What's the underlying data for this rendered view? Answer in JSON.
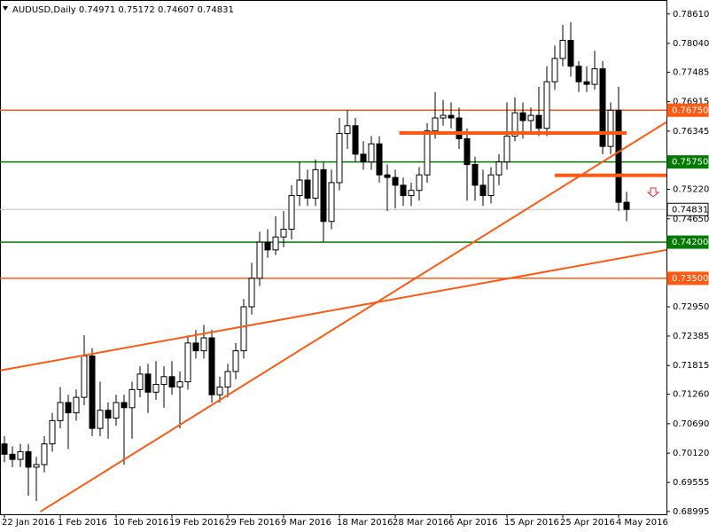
{
  "chart_data": {
    "type": "candlestick",
    "title": "AUDUSD,Daily  0.74971 0.75172 0.74607 0.74831",
    "categories": [
      "22 Jan 2016",
      null,
      null,
      null,
      null,
      null,
      null,
      "1 Feb 2016",
      null,
      null,
      null,
      null,
      null,
      null,
      "10 Feb 2016",
      null,
      null,
      null,
      null,
      null,
      null,
      "19 Feb 2016",
      null,
      null,
      null,
      null,
      null,
      null,
      "29 Feb 2016",
      null,
      null,
      null,
      null,
      null,
      null,
      "9 Mar 2016",
      null,
      null,
      null,
      null,
      null,
      null,
      "18 Mar 2016",
      null,
      null,
      null,
      null,
      null,
      null,
      "28 Mar 2016",
      null,
      null,
      null,
      null,
      null,
      null,
      "6 Apr 2016",
      null,
      null,
      null,
      null,
      null,
      null,
      "15 Apr 2016",
      null,
      null,
      null,
      null,
      null,
      null,
      "25 Apr 2016",
      null,
      null,
      null,
      null,
      null,
      null,
      "4 May 2016",
      null
    ],
    "open": [
      0.703,
      0.701,
      0.7,
      0.7015,
      0.6985,
      0.699,
      0.703,
      0.7075,
      0.711,
      0.709,
      0.712,
      0.72,
      0.706,
      0.7095,
      0.708,
      0.711,
      0.71,
      0.7135,
      0.7165,
      0.713,
      0.7145,
      0.716,
      0.714,
      0.715,
      0.7225,
      0.721,
      0.7235,
      0.7125,
      0.714,
      0.717,
      0.721,
      0.7295,
      0.735,
      0.742,
      0.7405,
      0.743,
      0.7445,
      0.751,
      0.754,
      0.7505,
      0.756,
      0.746,
      0.7535,
      0.763,
      0.7645,
      0.759,
      0.7575,
      0.761,
      0.755,
      0.7545,
      0.753,
      0.751,
      0.752,
      0.755,
      0.7635,
      0.766,
      0.7665,
      0.766,
      0.762,
      0.757,
      0.753,
      0.751,
      0.755,
      0.7575,
      0.7625,
      0.767,
      0.7655,
      0.7665,
      0.764,
      0.773,
      0.7775,
      0.781,
      0.776,
      0.773,
      0.7725,
      0.7755,
      0.7605,
      0.7675,
      0.74971
    ],
    "high": [
      0.7045,
      0.7025,
      0.703,
      0.703,
      0.7005,
      0.7045,
      0.709,
      0.714,
      0.7125,
      0.7135,
      0.724,
      0.7215,
      0.715,
      0.711,
      0.7125,
      0.7125,
      0.715,
      0.718,
      0.7185,
      0.719,
      0.718,
      0.719,
      0.717,
      0.724,
      0.725,
      0.726,
      0.725,
      0.716,
      0.7185,
      0.7225,
      0.731,
      0.738,
      0.744,
      0.7445,
      0.747,
      0.748,
      0.753,
      0.7575,
      0.756,
      0.758,
      0.7575,
      0.756,
      0.766,
      0.7675,
      0.766,
      0.7615,
      0.7625,
      0.7625,
      0.757,
      0.756,
      0.7545,
      0.7535,
      0.7565,
      0.765,
      0.771,
      0.7695,
      0.769,
      0.768,
      0.764,
      0.7585,
      0.756,
      0.7565,
      0.759,
      0.769,
      0.77,
      0.769,
      0.768,
      0.772,
      0.776,
      0.78,
      0.784,
      0.7845,
      0.777,
      0.776,
      0.779,
      0.777,
      0.769,
      0.772,
      0.75172
    ],
    "low": [
      0.6995,
      0.6985,
      0.6985,
      0.693,
      0.692,
      0.6975,
      0.7015,
      0.706,
      0.702,
      0.7075,
      0.7105,
      0.7045,
      0.7045,
      0.704,
      0.7065,
      0.699,
      0.704,
      0.712,
      0.709,
      0.7115,
      0.71,
      0.7125,
      0.706,
      0.7135,
      0.7195,
      0.7195,
      0.711,
      0.711,
      0.712,
      0.7155,
      0.7195,
      0.728,
      0.7335,
      0.739,
      0.7395,
      0.741,
      0.7425,
      0.749,
      0.749,
      0.749,
      0.742,
      0.7445,
      0.752,
      0.76,
      0.7575,
      0.756,
      0.756,
      0.7535,
      0.748,
      0.7485,
      0.749,
      0.749,
      0.75,
      0.7535,
      0.762,
      0.7645,
      0.764,
      0.76,
      0.75,
      0.75,
      0.749,
      0.7495,
      0.753,
      0.756,
      0.7615,
      0.762,
      0.763,
      0.7625,
      0.7625,
      0.7715,
      0.776,
      0.774,
      0.771,
      0.771,
      0.7715,
      0.759,
      0.759,
      0.748,
      0.74607
    ],
    "close": [
      0.701,
      0.7,
      0.7015,
      0.6985,
      0.699,
      0.703,
      0.7075,
      0.711,
      0.709,
      0.712,
      0.72,
      0.706,
      0.7095,
      0.708,
      0.711,
      0.71,
      0.7135,
      0.7165,
      0.713,
      0.7145,
      0.716,
      0.714,
      0.715,
      0.7225,
      0.721,
      0.7235,
      0.7125,
      0.714,
      0.717,
      0.721,
      0.7295,
      0.735,
      0.742,
      0.7405,
      0.743,
      0.7445,
      0.751,
      0.754,
      0.7505,
      0.756,
      0.746,
      0.7535,
      0.763,
      0.7645,
      0.759,
      0.7575,
      0.761,
      0.755,
      0.7545,
      0.753,
      0.751,
      0.752,
      0.755,
      0.7635,
      0.766,
      0.7665,
      0.766,
      0.762,
      0.757,
      0.753,
      0.751,
      0.755,
      0.7575,
      0.7625,
      0.767,
      0.7655,
      0.7665,
      0.764,
      0.773,
      0.7775,
      0.781,
      0.776,
      0.773,
      0.7725,
      0.7755,
      0.7605,
      0.7675,
      0.7497,
      0.74831
    ],
    "ylim": [
      0.6894,
      0.7888
    ],
    "yticks": [
      {
        "value": 0.7861,
        "label": "0.78610"
      },
      {
        "value": 0.7804,
        "label": "0.78040"
      },
      {
        "value": 0.77485,
        "label": "0.77485"
      },
      {
        "value": 0.76915,
        "label": "0.76915"
      },
      {
        "value": 0.76345,
        "label": "0.76345"
      },
      {
        "value": 0.7522,
        "label": "0.75220"
      },
      {
        "value": 0.7465,
        "label": "0.74650"
      },
      {
        "value": 0.7295,
        "label": "0.72950"
      },
      {
        "value": 0.72385,
        "label": "0.72385"
      },
      {
        "value": 0.71815,
        "label": "0.71815"
      },
      {
        "value": 0.7126,
        "label": "0.71260"
      },
      {
        "value": 0.7069,
        "label": "0.70690"
      },
      {
        "value": 0.7012,
        "label": "0.70120"
      },
      {
        "value": 0.69555,
        "label": "0.69555"
      },
      {
        "value": 0.68995,
        "label": "0.68995"
      }
    ],
    "levels": [
      {
        "value": 0.7675,
        "label": "0.76750",
        "color": "#ff5a14"
      },
      {
        "value": 0.7575,
        "label": "0.75750",
        "color": "#007a00"
      },
      {
        "value": 0.74831,
        "label": "0.74831",
        "color": "#c0c0c0"
      },
      {
        "value": 0.742,
        "label": "0.74200",
        "color": "#007a00"
      },
      {
        "value": 0.735,
        "label": "0.73500",
        "color": "#ff5a14"
      }
    ],
    "trendlines": [
      {
        "x": [
          -0.5,
          83
        ],
        "y": [
          0.7172,
          0.7405
        ],
        "color": "#ff5a14",
        "width": 2
      },
      {
        "x": [
          4.5,
          83
        ],
        "y": [
          0.6899,
          0.7652
        ],
        "color": "#ff5a14",
        "width": 2
      },
      {
        "x": [
          49.5,
          78
        ],
        "y": [
          0.7631,
          0.7631
        ],
        "color": "#ff5a14",
        "width": 4
      },
      {
        "x": [
          69,
          83
        ],
        "y": [
          0.7549,
          0.7549
        ],
        "color": "#ff5a14",
        "width": 4
      }
    ]
  }
}
